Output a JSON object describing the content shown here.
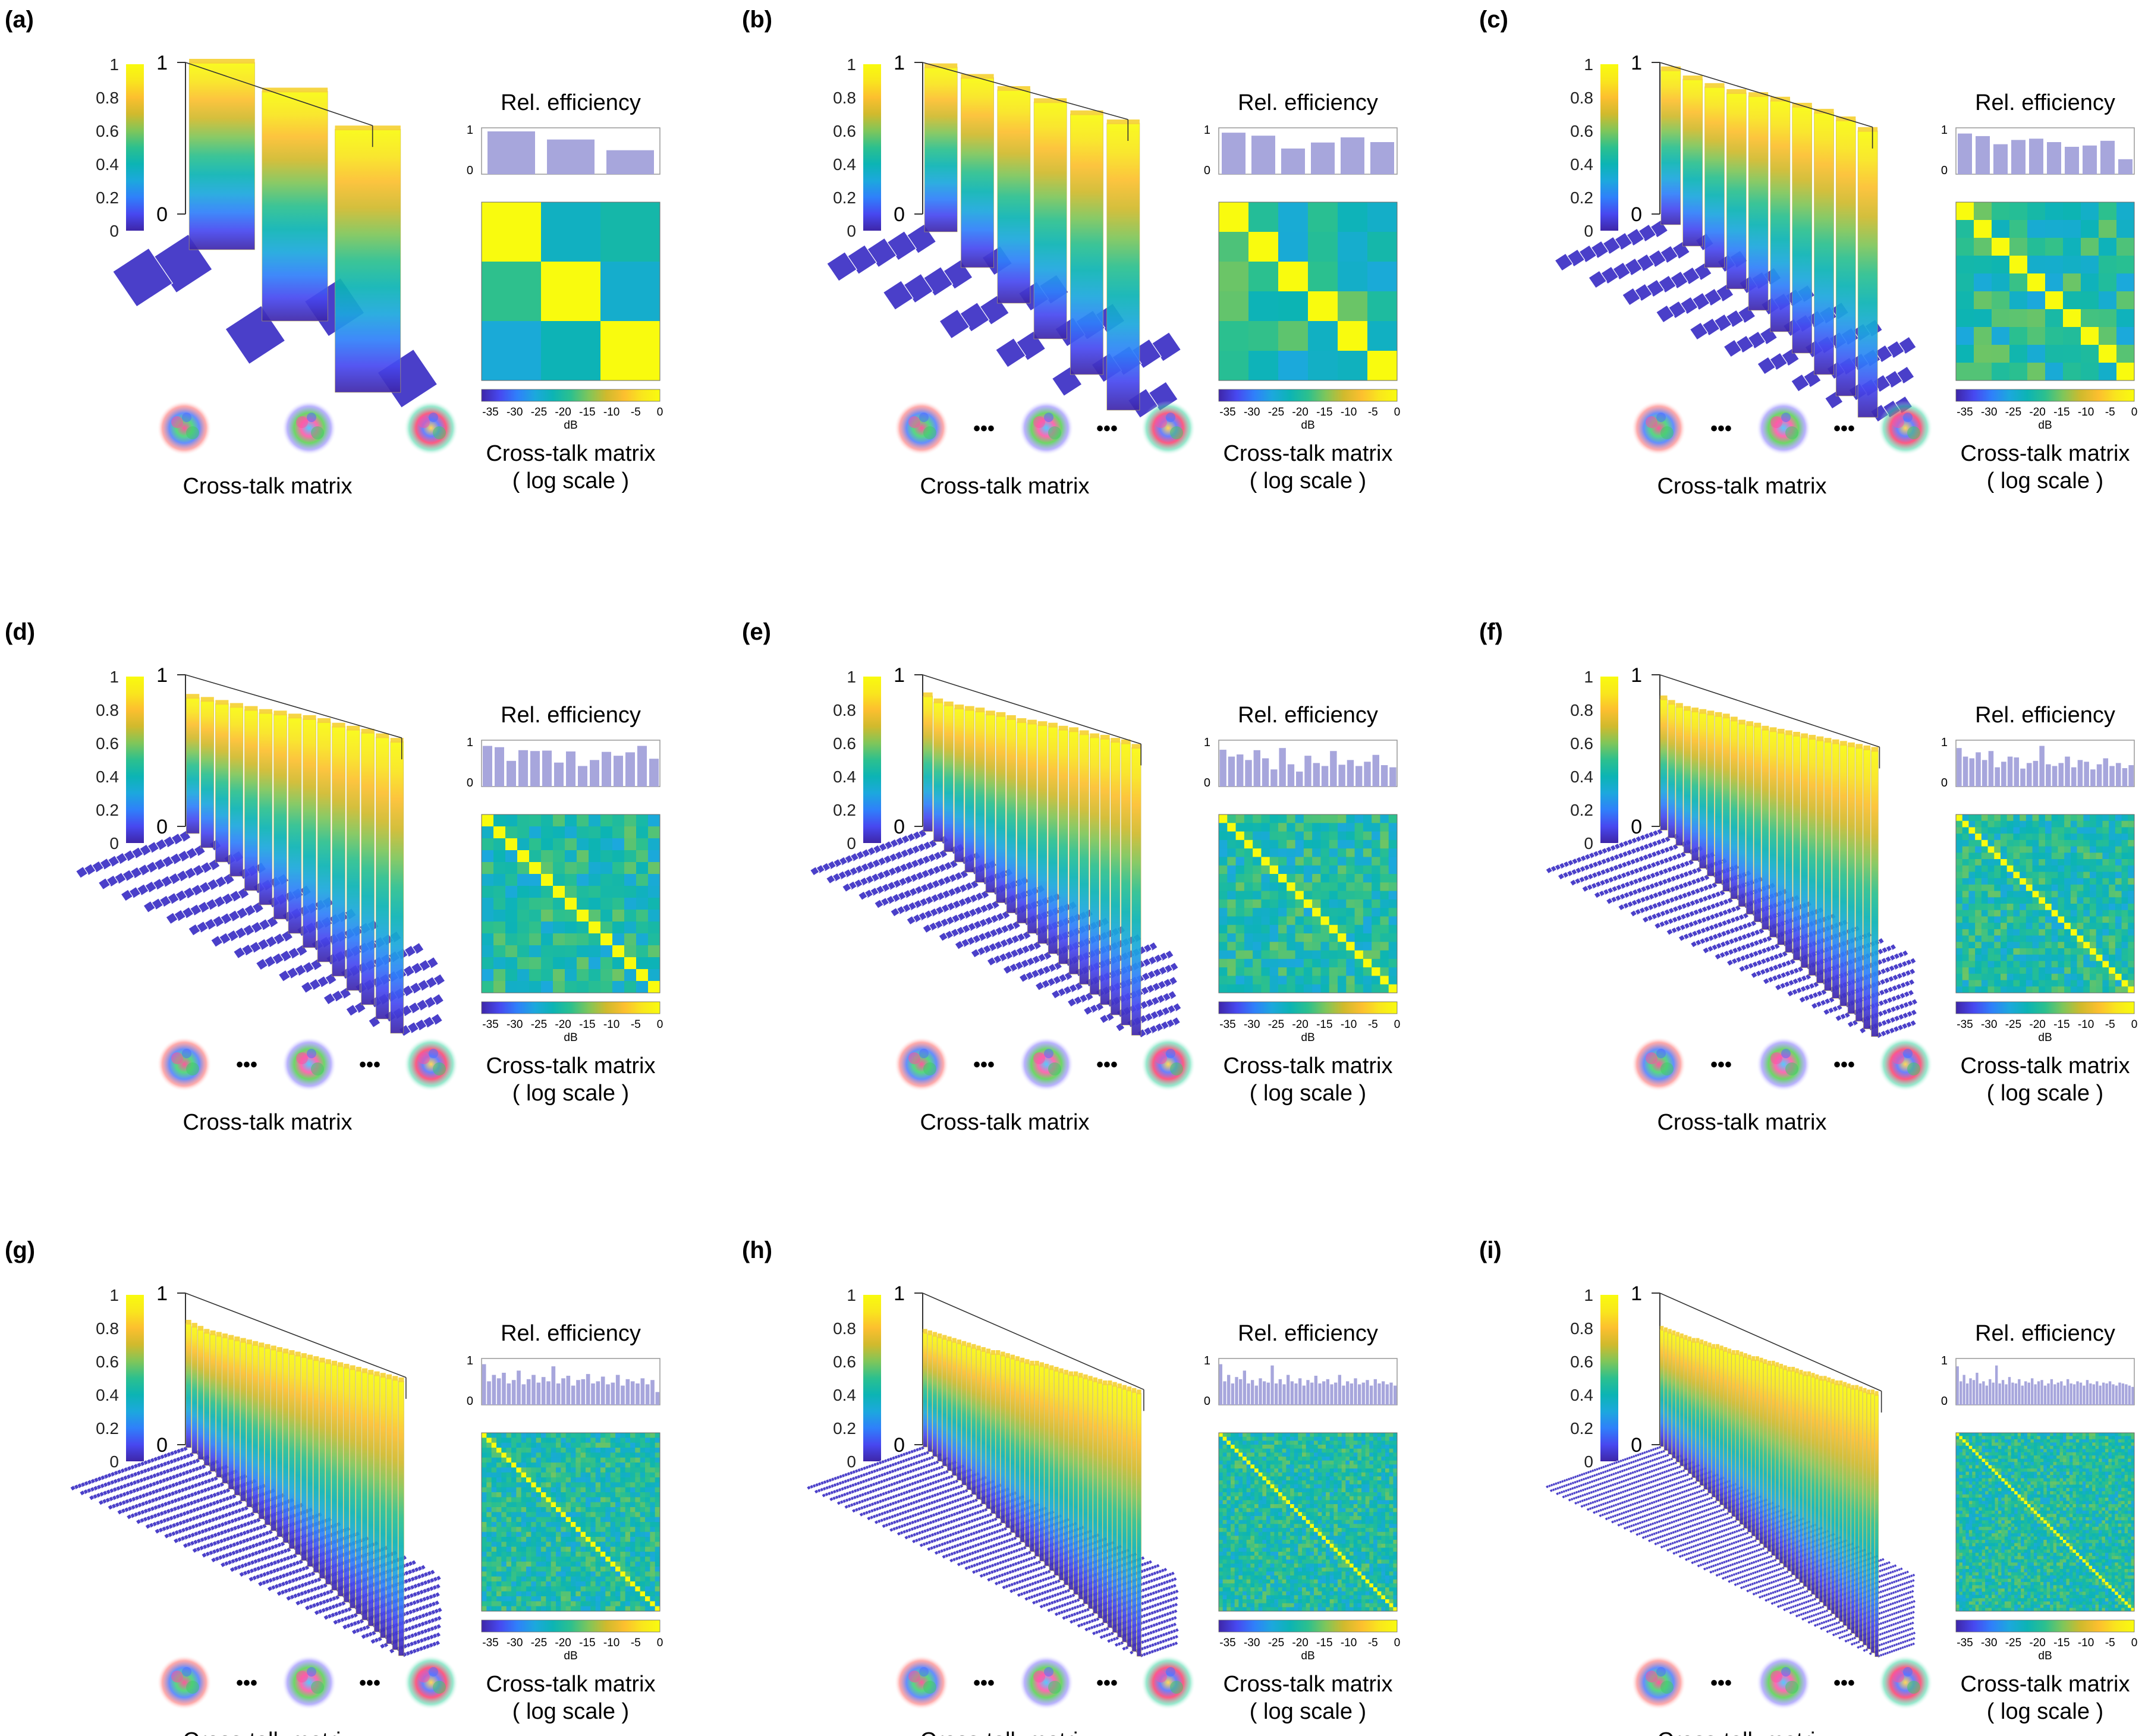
{
  "colormap": [
    "#3e26a8",
    "#4748f0",
    "#2f80fa",
    "#1ca8dd",
    "#0cb4b4",
    "#2cc08e",
    "#7fc65a",
    "#d0ba2d",
    "#fcbf2f",
    "#f9e61d",
    "#f9fb0e"
  ],
  "efficiency_bar_color": "#a7a6dc",
  "labels": {
    "rel_efficiency": "Rel.  efficiency",
    "cross_talk": "Cross-talk  matrix",
    "log_line1": "Cross-talk  matrix",
    "log_line2": "( log  scale )",
    "db": "dB",
    "ellipsis": "•••",
    "colorbar_ticks": [
      "1",
      "0.8",
      "0.6",
      "0.4",
      "0.2",
      "0"
    ],
    "axis_one": "1",
    "axis_zero": "0",
    "eff_top": "1",
    "eff_bottom": "0",
    "db_ticks": [
      "-35",
      "-30",
      "-25",
      "-20",
      "-15",
      "-10",
      "-5",
      "0"
    ]
  },
  "chart_data": [
    {
      "panel": "(a)",
      "type": "bar",
      "modes": 3,
      "title": "Cross-talk  matrix",
      "zlim": [
        0,
        1
      ],
      "db_range": [
        -35,
        0
      ],
      "diagonal": [
        1.0,
        0.81,
        0.56
      ],
      "rel_efficiency": [
        1.0,
        0.81,
        0.56
      ]
    },
    {
      "panel": "(b)",
      "type": "bar",
      "modes": 6,
      "title": "Cross-talk  matrix",
      "zlim": [
        0,
        1
      ],
      "db_range": [
        -35,
        0
      ],
      "diagonal": [
        0.97,
        0.9,
        0.82,
        0.74,
        0.66,
        0.6
      ],
      "rel_efficiency": [
        0.97,
        0.9,
        0.6,
        0.74,
        0.86,
        0.75
      ]
    },
    {
      "panel": "(c)",
      "type": "bar",
      "modes": 10,
      "title": "Cross-talk  matrix",
      "zlim": [
        0,
        1
      ],
      "db_range": [
        -35,
        0
      ],
      "diagonal": [
        0.95,
        0.89,
        0.84,
        0.8,
        0.78,
        0.75,
        0.71,
        0.67,
        0.62,
        0.55
      ],
      "rel_efficiency": [
        0.95,
        0.89,
        0.7,
        0.8,
        0.83,
        0.75,
        0.64,
        0.67,
        0.78,
        0.35
      ]
    },
    {
      "panel": "(d)",
      "type": "bar",
      "modes": 15,
      "title": "Cross-talk  matrix",
      "zlim": [
        0,
        1
      ],
      "db_range": [
        -35,
        0
      ],
      "diagonal": [
        0.85,
        0.83,
        0.81,
        0.79,
        0.77,
        0.75,
        0.74,
        0.72,
        0.71,
        0.69,
        0.66,
        0.64,
        0.62,
        0.59,
        0.56
      ],
      "rel_efficiency": [
        0.95,
        0.92,
        0.6,
        0.85,
        0.83,
        0.84,
        0.56,
        0.82,
        0.48,
        0.62,
        0.81,
        0.72,
        0.8,
        0.95,
        0.65
      ]
    },
    {
      "panel": "(e)",
      "type": "bar",
      "modes": 21,
      "title": "Cross-talk  matrix",
      "zlim": [
        0,
        1
      ],
      "db_range": [
        -35,
        0
      ],
      "diagonal": [
        0.86,
        0.82,
        0.8,
        0.78,
        0.77,
        0.76,
        0.74,
        0.73,
        0.71,
        0.69,
        0.68,
        0.67,
        0.66,
        0.64,
        0.63,
        0.61,
        0.59,
        0.58,
        0.56,
        0.55,
        0.52
      ],
      "rel_efficiency": [
        0.86,
        0.7,
        0.75,
        0.62,
        0.85,
        0.66,
        0.4,
        0.9,
        0.52,
        0.35,
        0.72,
        0.55,
        0.48,
        0.83,
        0.51,
        0.62,
        0.48,
        0.58,
        0.74,
        0.5,
        0.45
      ]
    },
    {
      "panel": "(f)",
      "type": "bar",
      "modes": 28,
      "title": "Cross-talk  matrix",
      "zlim": [
        0,
        1
      ],
      "db_range": [
        -35,
        0
      ],
      "diagonal": [
        0.84,
        0.81,
        0.79,
        0.77,
        0.76,
        0.75,
        0.74,
        0.73,
        0.72,
        0.7,
        0.68,
        0.67,
        0.66,
        0.64,
        0.63,
        0.62,
        0.61,
        0.6,
        0.59,
        0.58,
        0.57,
        0.56,
        0.55,
        0.54,
        0.53,
        0.52,
        0.51,
        0.5
      ],
      "rel_efficiency": [
        0.9,
        0.7,
        0.66,
        0.8,
        0.62,
        0.83,
        0.45,
        0.58,
        0.7,
        0.68,
        0.42,
        0.55,
        0.6,
        0.95,
        0.52,
        0.48,
        0.55,
        0.7,
        0.45,
        0.62,
        0.58,
        0.4,
        0.52,
        0.66,
        0.48,
        0.55,
        0.43,
        0.5
      ]
    },
    {
      "panel": "(g)",
      "type": "bar",
      "modes": 36,
      "title": "Cross-talk  matrix",
      "zlim": [
        0,
        1
      ],
      "db_range": [
        -35,
        0
      ],
      "diagonal": [
        0.8,
        0.78,
        0.76,
        0.74,
        0.73,
        0.72,
        0.71,
        0.7,
        0.69,
        0.68,
        0.67,
        0.66,
        0.65,
        0.64,
        0.63,
        0.62,
        0.61,
        0.6,
        0.59,
        0.58,
        0.57,
        0.56,
        0.55,
        0.54,
        0.53,
        0.52,
        0.51,
        0.5,
        0.49,
        0.48,
        0.47,
        0.46,
        0.45,
        0.44,
        0.43,
        0.42
      ],
      "rel_efficiency": [
        0.95,
        0.55,
        0.7,
        0.62,
        0.75,
        0.5,
        0.58,
        0.8,
        0.48,
        0.6,
        0.7,
        0.52,
        0.65,
        0.55,
        0.9,
        0.5,
        0.62,
        0.68,
        0.45,
        0.58,
        0.6,
        0.72,
        0.5,
        0.55,
        0.66,
        0.48,
        0.52,
        0.7,
        0.45,
        0.6,
        0.55,
        0.5,
        0.62,
        0.48,
        0.58,
        0.3
      ]
    },
    {
      "panel": "(h)",
      "type": "bar",
      "modes": 45,
      "title": "Cross-talk  matrix",
      "zlim": [
        0,
        1
      ],
      "db_range": [
        -35,
        0
      ],
      "diagonal": [
        0.74,
        0.73,
        0.72,
        0.71,
        0.7,
        0.69,
        0.68,
        0.67,
        0.66,
        0.65,
        0.64,
        0.63,
        0.62,
        0.61,
        0.6,
        0.6,
        0.59,
        0.58,
        0.57,
        0.56,
        0.55,
        0.54,
        0.53,
        0.53,
        0.52,
        0.51,
        0.5,
        0.49,
        0.48,
        0.47,
        0.46,
        0.46,
        0.45,
        0.44,
        0.43,
        0.42,
        0.41,
        0.4,
        0.4,
        0.39,
        0.38,
        0.37,
        0.36,
        0.35,
        0.34
      ],
      "rel_efficiency": [
        0.95,
        0.55,
        0.7,
        0.5,
        0.65,
        0.6,
        0.8,
        0.5,
        0.58,
        0.45,
        0.62,
        0.55,
        0.52,
        0.92,
        0.5,
        0.6,
        0.48,
        0.7,
        0.55,
        0.5,
        0.62,
        0.45,
        0.58,
        0.52,
        0.68,
        0.5,
        0.55,
        0.6,
        0.48,
        0.52,
        0.7,
        0.45,
        0.55,
        0.5,
        0.62,
        0.48,
        0.52,
        0.58,
        0.45,
        0.6,
        0.5,
        0.55,
        0.48,
        0.52,
        0.45
      ]
    },
    {
      "panel": "(i)",
      "type": "bar",
      "modes": 55,
      "title": "Cross-talk  matrix",
      "zlim": [
        0,
        1
      ],
      "db_range": [
        -35,
        0
      ],
      "diagonal": [
        0.76,
        0.75,
        0.74,
        0.73,
        0.72,
        0.71,
        0.7,
        0.69,
        0.68,
        0.68,
        0.67,
        0.66,
        0.65,
        0.64,
        0.64,
        0.63,
        0.62,
        0.61,
        0.6,
        0.6,
        0.59,
        0.58,
        0.57,
        0.56,
        0.56,
        0.55,
        0.54,
        0.53,
        0.53,
        0.52,
        0.51,
        0.5,
        0.49,
        0.49,
        0.48,
        0.47,
        0.46,
        0.46,
        0.45,
        0.44,
        0.43,
        0.43,
        0.42,
        0.41,
        0.4,
        0.4,
        0.39,
        0.38,
        0.37,
        0.37,
        0.36,
        0.35,
        0.34,
        0.34,
        0.33
      ],
      "rel_efficiency": [
        0.9,
        0.55,
        0.7,
        0.5,
        0.62,
        0.58,
        0.75,
        0.5,
        0.55,
        0.45,
        0.6,
        0.52,
        0.92,
        0.5,
        0.58,
        0.48,
        0.65,
        0.52,
        0.5,
        0.6,
        0.45,
        0.55,
        0.52,
        0.62,
        0.48,
        0.55,
        0.58,
        0.45,
        0.5,
        0.6,
        0.48,
        0.52,
        0.55,
        0.45,
        0.6,
        0.5,
        0.48,
        0.55,
        0.52,
        0.45,
        0.58,
        0.5,
        0.48,
        0.55,
        0.45,
        0.52,
        0.5,
        0.55,
        0.48,
        0.45,
        0.52,
        0.5,
        0.48,
        0.45,
        0.42
      ]
    }
  ]
}
